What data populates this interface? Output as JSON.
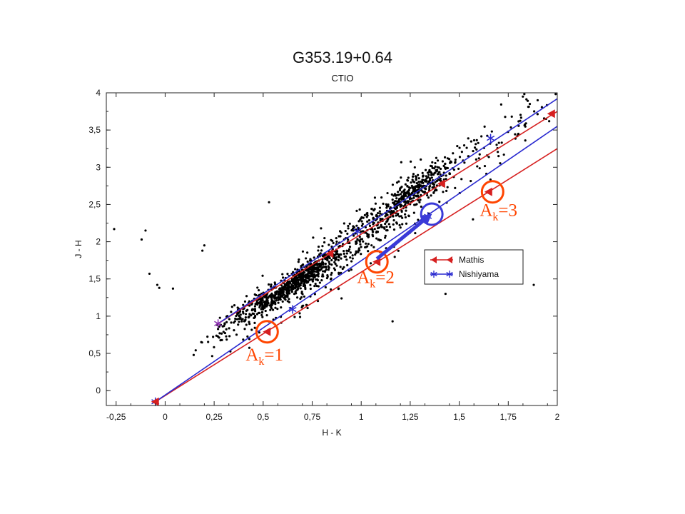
{
  "chart_data": {
    "type": "scatter",
    "title": "G353.19+0.64",
    "subtitle": "CTIO",
    "xlabel": "H - K",
    "ylabel": "J - H",
    "xlim": [
      -0.3,
      2.0
    ],
    "ylim": [
      -0.2,
      4.0
    ],
    "x_ticks": [
      {
        "v": -0.25,
        "label": "-0,25"
      },
      {
        "v": 0,
        "label": "0"
      },
      {
        "v": 0.25,
        "label": "0,25"
      },
      {
        "v": 0.5,
        "label": "0,5"
      },
      {
        "v": 0.75,
        "label": "0,75"
      },
      {
        "v": 1,
        "label": "1"
      },
      {
        "v": 1.25,
        "label": "1,25"
      },
      {
        "v": 1.5,
        "label": "1,5"
      },
      {
        "v": 1.75,
        "label": "1,75"
      },
      {
        "v": 2,
        "label": "2"
      }
    ],
    "y_ticks": [
      {
        "v": 0,
        "label": "0"
      },
      {
        "v": 0.5,
        "label": "0,5"
      },
      {
        "v": 1,
        "label": "1"
      },
      {
        "v": 1.5,
        "label": "1,5"
      },
      {
        "v": 2,
        "label": "2"
      },
      {
        "v": 2.5,
        "label": "2,5"
      },
      {
        "v": 3,
        "label": "3"
      },
      {
        "v": 3.5,
        "label": "3,5"
      },
      {
        "v": 4,
        "label": "4"
      }
    ],
    "grid": false,
    "legend": {
      "placement": "center-right",
      "entries": [
        {
          "name": "Mathis",
          "color": "#d62020",
          "marker": "triangle-left"
        },
        {
          "name": "Nishiyama",
          "color": "#2a2ad0",
          "marker": "asterisk"
        }
      ]
    },
    "reddening_lines": [
      {
        "series": "Mathis",
        "color": "#d62020",
        "from": [
          0.27,
          0.9
        ],
        "to": [
          2.0,
          3.75
        ],
        "markers": [
          [
            0.84,
            1.84
          ],
          [
            1.41,
            2.78
          ],
          [
            1.97,
            3.72
          ]
        ]
      },
      {
        "series": "Mathis",
        "color": "#d62020",
        "from": [
          -0.05,
          -0.15
        ],
        "to": [
          2.0,
          3.25
        ],
        "markers": [
          [
            0.52,
            0.79
          ],
          [
            1.08,
            1.73
          ],
          [
            1.65,
            2.67
          ]
        ]
      },
      {
        "series": "Nishiyama",
        "color": "#2a2ad0",
        "from": [
          0.27,
          0.9
        ],
        "to": [
          2.0,
          3.92
        ],
        "markers": [
          [
            0.98,
            2.14
          ],
          [
            1.66,
            3.39
          ]
        ]
      },
      {
        "series": "Nishiyama",
        "color": "#2a2ad0",
        "from": [
          -0.05,
          -0.15
        ],
        "to": [
          2.0,
          3.55
        ],
        "markers": [
          [
            0.65,
            1.09
          ],
          [
            1.34,
            2.34
          ]
        ]
      }
    ],
    "annotations": [
      {
        "label": "A",
        "sub": "k",
        "value": "=1",
        "x": 0.52,
        "y": 0.79,
        "color": "#ff4500"
      },
      {
        "label": "A",
        "sub": "k",
        "value": "=2",
        "x": 1.08,
        "y": 1.73,
        "color": "#ff4500"
      },
      {
        "label": "A",
        "sub": "k",
        "value": "=3",
        "x": 1.67,
        "y": 2.67,
        "color": "#ff4500"
      }
    ],
    "highlight": {
      "x": 1.36,
      "y": 2.37,
      "color": "#3a3ad8",
      "arrow_from": [
        1.08,
        1.77
      ],
      "arrow_to": [
        1.36,
        2.37
      ]
    },
    "clusters": [
      {
        "cx": 0.65,
        "cy": 1.42,
        "sx": 0.1,
        "sy": 0.09,
        "n": 550
      },
      {
        "cx": 1.25,
        "cy": 2.65,
        "sx": 0.1,
        "sy": 0.16,
        "n": 320
      },
      {
        "cx": 0.95,
        "cy": 1.95,
        "sx": 0.22,
        "sy": 0.42,
        "n": 450
      },
      {
        "cx": 1.6,
        "cy": 3.2,
        "sx": 0.18,
        "sy": 0.35,
        "n": 110
      },
      {
        "cx": 0.4,
        "cy": 1.05,
        "sx": 0.1,
        "sy": 0.15,
        "n": 120
      }
    ],
    "outliers": [
      [
        -0.26,
        2.17
      ],
      [
        -0.1,
        2.15
      ],
      [
        -0.12,
        2.03
      ],
      [
        -0.08,
        1.57
      ],
      [
        -0.04,
        1.42
      ],
      [
        -0.03,
        1.38
      ],
      [
        0.04,
        1.37
      ],
      [
        0.2,
        1.95
      ],
      [
        0.19,
        1.88
      ],
      [
        0.53,
        2.53
      ],
      [
        1.16,
        0.93
      ],
      [
        1.55,
        1.6
      ],
      [
        1.43,
        1.3
      ],
      [
        1.88,
        1.42
      ],
      [
        1.57,
        2.3
      ],
      [
        1.9,
        3.9
      ],
      [
        1.86,
        3.85
      ]
    ]
  }
}
